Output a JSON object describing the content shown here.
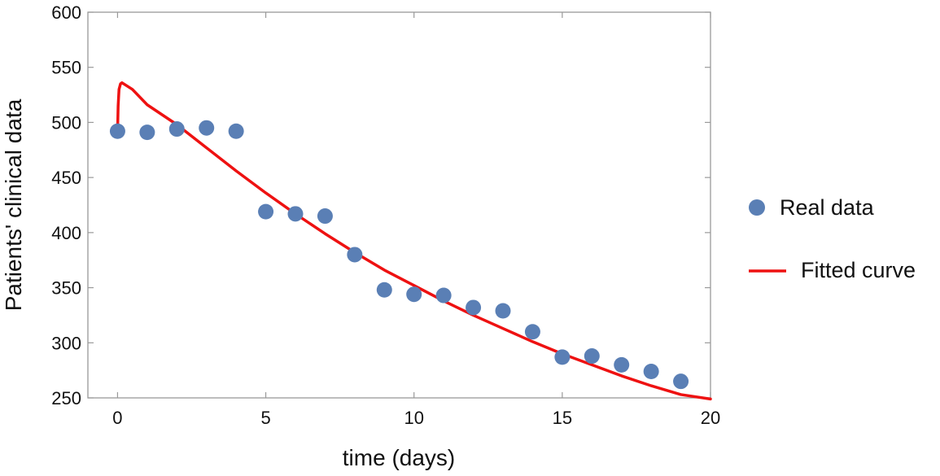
{
  "chart_data": {
    "type": "scatter",
    "xlabel": "time (days)",
    "ylabel": "Patients' clinical data",
    "xlim": [
      -1,
      20
    ],
    "ylim": [
      250,
      600
    ],
    "xticks": [
      0,
      5,
      10,
      15,
      20
    ],
    "yticks": [
      250,
      300,
      350,
      400,
      450,
      500,
      550,
      600
    ],
    "grid": false,
    "legend_position": "right",
    "series": [
      {
        "name": "Real data",
        "kind": "scatter",
        "color": "#5a7fb5",
        "x": [
          0,
          1,
          2,
          3,
          4,
          5,
          6,
          7,
          8,
          9,
          10,
          11,
          12,
          13,
          14,
          15,
          16,
          17,
          18,
          19
        ],
        "y": [
          492,
          491,
          494,
          495,
          492,
          419,
          417,
          415,
          380,
          348,
          344,
          343,
          332,
          329,
          310,
          287,
          288,
          280,
          274,
          265
        ]
      },
      {
        "name": "Fitted curve",
        "kind": "line",
        "color": "#ee1111",
        "x": [
          0,
          0.02,
          0.05,
          0.1,
          0.15,
          0.5,
          1,
          2,
          3,
          4,
          5,
          6,
          7,
          8,
          9,
          10,
          11,
          12,
          13,
          14,
          15,
          16,
          17,
          18,
          19,
          20
        ],
        "y": [
          490,
          515,
          530,
          535,
          536,
          530,
          516,
          498,
          477,
          456,
          436,
          417,
          399,
          382,
          366,
          352,
          338,
          325,
          313,
          301,
          290,
          280,
          270,
          261,
          253,
          249
        ]
      }
    ]
  }
}
